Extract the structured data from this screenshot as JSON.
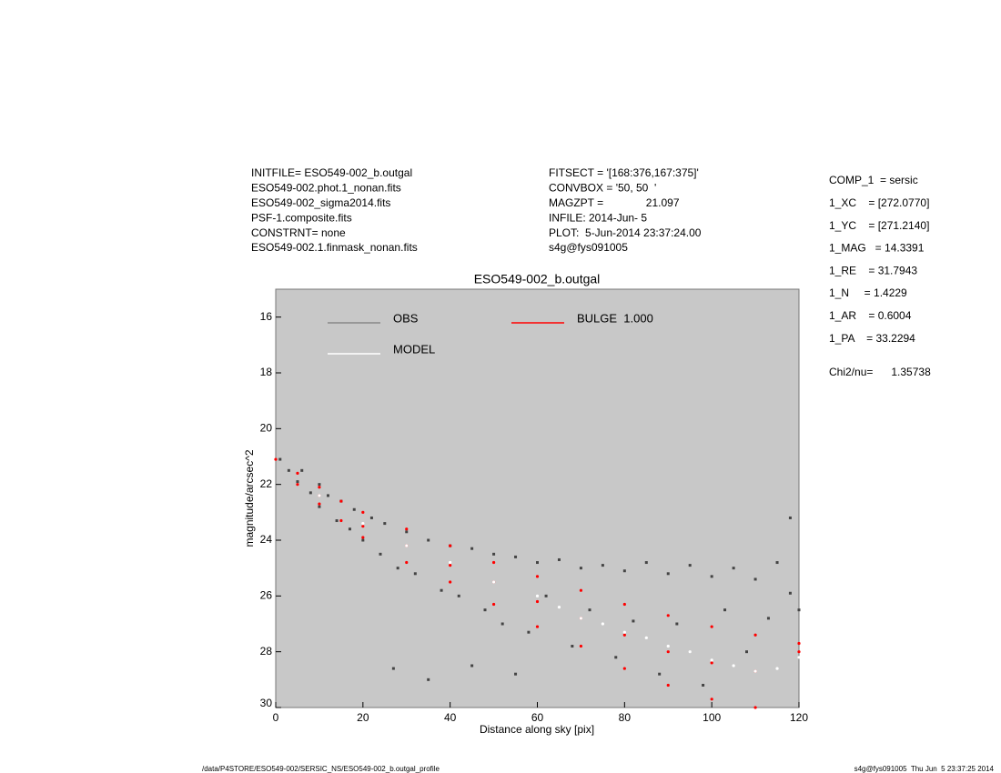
{
  "header": {
    "left": [
      "INITFILE= ESO549-002_b.outgal",
      "ESO549-002.phot.1_nonan.fits",
      "ESO549-002_sigma2014.fits",
      "PSF-1.composite.fits",
      "CONSTRNT= none",
      "ESO549-002.1.finmask_nonan.fits"
    ],
    "middle": [
      "FITSECT = '[168:376,167:375]'",
      "CONVBOX = '50, 50  '",
      "MAGZPT =              21.097",
      "INFILE: 2014-Jun- 5",
      "PLOT:  5-Jun-2014 23:37:24.00",
      "s4g@fys091005"
    ],
    "right": [
      "COMP_1  = sersic",
      "1_XC    = [272.0770]",
      "1_YC    = [271.2140]",
      "1_MAG   = 14.3391",
      "1_RE    = 31.7943",
      "1_N     = 1.4229",
      "1_AR    = 0.6004",
      "1_PA    = 33.2294",
      "Chi2/nu=      1.35738"
    ]
  },
  "footer": {
    "left": "/data/P4STORE/ESO549-002/SERSIC_NS/ESO549-002_b.outgal_profile",
    "right": "s4g@fys091005  Thu Jun  5 23:37:25 2014"
  },
  "chart_data": {
    "type": "scatter",
    "title": "ESO549-002_b.outgal",
    "x_label": "Distance along sky [pix]",
    "y_label": "magnitude/arcsec^2",
    "xlim": [
      0,
      120
    ],
    "xticks": [
      0,
      20,
      40,
      60,
      80,
      100,
      120
    ],
    "ylim": [
      15,
      30
    ],
    "y_inverted": true,
    "yticks": [
      16,
      18,
      20,
      22,
      24,
      26,
      28,
      30
    ],
    "series": [
      {
        "name": "OBS",
        "color": "#444444",
        "legend_color": "#888888",
        "x": [
          1,
          3,
          5,
          6,
          8,
          10,
          10,
          12,
          14,
          15,
          17,
          18,
          20,
          22,
          24,
          25,
          28,
          30,
          32,
          35,
          38,
          40,
          42,
          45,
          48,
          50,
          52,
          55,
          58,
          60,
          62,
          65,
          68,
          70,
          72,
          75,
          78,
          80,
          82,
          85,
          88,
          90,
          92,
          95,
          98,
          100,
          103,
          105,
          108,
          110,
          113,
          115,
          118,
          118,
          120,
          27,
          35,
          45,
          55
        ],
        "values": [
          21.1,
          21.5,
          21.9,
          21.5,
          22.3,
          22.0,
          22.8,
          22.4,
          23.3,
          22.6,
          23.6,
          22.9,
          24.0,
          23.2,
          24.5,
          23.4,
          25.0,
          23.7,
          25.2,
          24.0,
          25.8,
          24.2,
          26.0,
          24.3,
          26.5,
          24.5,
          27.0,
          24.6,
          27.3,
          24.8,
          26.0,
          24.7,
          27.8,
          25.0,
          26.5,
          24.9,
          28.2,
          25.1,
          26.9,
          24.8,
          28.8,
          25.2,
          27.0,
          24.9,
          29.2,
          25.3,
          26.5,
          25.0,
          28.0,
          25.4,
          26.8,
          24.8,
          23.2,
          25.9,
          26.5,
          28.6,
          29.0,
          28.5,
          28.8
        ]
      },
      {
        "name": "BULGE  1.000",
        "color": "#ff0000",
        "legend_color": "#ff0000",
        "x": [
          0,
          5,
          10,
          15,
          20,
          30,
          40,
          50,
          60,
          70,
          80,
          90,
          100,
          110,
          120,
          5,
          10,
          15,
          20,
          30,
          40,
          50,
          60,
          70,
          80,
          90,
          100,
          110,
          10,
          20,
          30,
          40,
          50,
          60,
          70,
          80,
          90,
          100,
          110,
          120
        ],
        "values": [
          21.1,
          21.6,
          22.1,
          22.6,
          23.0,
          23.6,
          24.2,
          24.8,
          25.3,
          25.8,
          26.3,
          26.7,
          27.1,
          27.4,
          27.7,
          22.0,
          22.7,
          23.3,
          23.9,
          24.8,
          25.5,
          26.3,
          27.1,
          27.8,
          28.6,
          29.2,
          29.7,
          30.0,
          22.4,
          23.5,
          24.2,
          24.9,
          25.5,
          26.2,
          26.8,
          27.4,
          28.0,
          28.4,
          28.7,
          28.0
        ]
      },
      {
        "name": "MODEL",
        "color": "#ffffff",
        "legend_color": "#ffffff",
        "x": [
          10,
          20,
          30,
          40,
          50,
          60,
          65,
          70,
          75,
          80,
          85,
          90,
          95,
          100,
          105,
          110,
          115,
          120
        ],
        "values": [
          22.4,
          23.4,
          24.2,
          24.8,
          25.5,
          26.0,
          26.4,
          26.8,
          27.0,
          27.3,
          27.5,
          27.8,
          28.0,
          28.3,
          28.5,
          28.7,
          28.6,
          28.2
        ]
      }
    ]
  }
}
